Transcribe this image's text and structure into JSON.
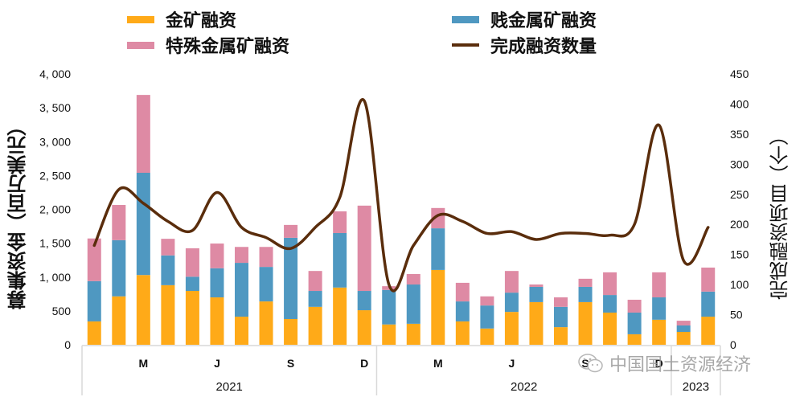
{
  "legend": {
    "gold": "金矿融资",
    "base": "贱金属矿融资",
    "special": "特殊金属矿融资",
    "count": "完成融资数量"
  },
  "axes": {
    "left_title": "募集资金（百万美元）",
    "right_title": "完成融资项目（个）",
    "left_ticks": [
      "0",
      "500",
      "1, 000",
      "1, 500",
      "2, 000",
      "2, 500",
      "3, 000",
      "3, 500",
      "4, 000"
    ],
    "right_ticks": [
      "0",
      "50",
      "100",
      "150",
      "200",
      "250",
      "300",
      "350",
      "400",
      "450"
    ]
  },
  "colors": {
    "gold": "#FFAA18",
    "base": "#4F98C1",
    "special": "#DE8AA4",
    "count": "#5A2D0C"
  },
  "watermark": "中国国土资源经济",
  "chart_data": {
    "type": "bar",
    "title": "",
    "xlabel": "",
    "ylabel": "募集资金（百万美元）",
    "y2label": "完成融资项目（个）",
    "ylim": [
      0,
      4000
    ],
    "y2lim": [
      0,
      450
    ],
    "legend_position": "top",
    "grid": false,
    "stacked": true,
    "categories": [
      "2021-01",
      "2021-02",
      "2021-03",
      "2021-04",
      "2021-05",
      "2021-06",
      "2021-07",
      "2021-08",
      "2021-09",
      "2021-10",
      "2021-11",
      "2021-12",
      "2022-01",
      "2022-02",
      "2022-03",
      "2022-04",
      "2022-05",
      "2022-06",
      "2022-07",
      "2022-08",
      "2022-09",
      "2022-10",
      "2022-11",
      "2022-12",
      "2023-01",
      "2023-02"
    ],
    "tick_labels": [
      {
        "index": 2,
        "label": "M"
      },
      {
        "index": 5,
        "label": "J"
      },
      {
        "index": 8,
        "label": "S"
      },
      {
        "index": 11,
        "label": "D"
      },
      {
        "index": 14,
        "label": "M"
      },
      {
        "index": 17,
        "label": "J"
      },
      {
        "index": 20,
        "label": "S"
      },
      {
        "index": 23,
        "label": "D"
      }
    ],
    "year_groups": [
      {
        "label": "2021",
        "start": 0,
        "end": 11
      },
      {
        "label": "2022",
        "start": 12,
        "end": 23
      },
      {
        "label": "2023",
        "start": 24,
        "end": 25
      }
    ],
    "series": [
      {
        "name": "金矿融资",
        "axis": "left",
        "kind": "bar",
        "values": [
          345,
          715,
          1030,
          880,
          795,
          700,
          415,
          640,
          380,
          560,
          845,
          510,
          300,
          310,
          1105,
          345,
          240,
          485,
          630,
          260,
          630,
          475,
          155,
          370,
          190,
          415
        ]
      },
      {
        "name": "贱金属矿融资",
        "axis": "left",
        "kind": "bar",
        "values": [
          595,
          830,
          1510,
          440,
          210,
          430,
          795,
          510,
          1200,
          235,
          805,
          285,
          510,
          580,
          615,
          295,
          340,
          285,
          225,
          300,
          225,
          260,
          320,
          330,
          95,
          370
        ]
      },
      {
        "name": "特殊金属矿融资",
        "axis": "left",
        "kind": "bar",
        "values": [
          630,
          520,
          1150,
          245,
          420,
          365,
          235,
          295,
          190,
          295,
          320,
          1260,
          55,
          155,
          300,
          275,
          135,
          320,
          35,
          140,
          120,
          335,
          190,
          370,
          70,
          355
        ]
      },
      {
        "name": "完成融资数量",
        "axis": "right",
        "kind": "line",
        "values": [
          165,
          258,
          235,
          205,
          190,
          253,
          195,
          178,
          160,
          195,
          245,
          405,
          100,
          165,
          215,
          205,
          185,
          188,
          175,
          185,
          185,
          182,
          200,
          365,
          140,
          195
        ]
      }
    ]
  }
}
